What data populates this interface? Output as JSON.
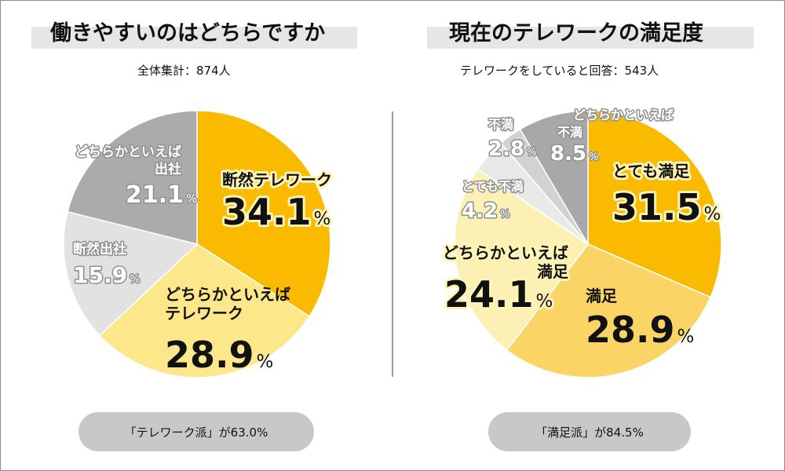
{
  "chart_data": [
    {
      "type": "pie",
      "title": "働きやすいのはどちらですか",
      "subtitle": "全体集計：874人",
      "footer": "「テレワーク派」が63.0%",
      "slices": [
        {
          "label_lines": [
            "断然テレワーク"
          ],
          "value": 34.1,
          "value_text": "34.1",
          "pct": "%",
          "color": "#F9BA00",
          "style": "dark-highlight"
        },
        {
          "label_lines": [
            "どちらかといえば",
            "テレワーク"
          ],
          "value": 28.9,
          "value_text": "28.9",
          "pct": "%",
          "color": "#FCE88A",
          "style": "dark"
        },
        {
          "label_lines": [
            "断然出社"
          ],
          "value": 15.9,
          "value_text": "15.9",
          "pct": "%",
          "color": "#E2E2E2",
          "style": "light"
        },
        {
          "label_lines": [
            "どちらかといえば",
            "出社"
          ],
          "value": 21.1,
          "value_text": "21.1",
          "pct": "%",
          "color": "#ABABAB",
          "style": "light"
        }
      ]
    },
    {
      "type": "pie",
      "title": "現在のテレワークの満足度",
      "subtitle": "テレワークをしていると回答：543人",
      "footer": "「満足派」が84.5%",
      "slices": [
        {
          "label_lines": [
            "とても満足"
          ],
          "value": 31.5,
          "value_text": "31.5",
          "pct": "%",
          "color": "#F9BA00",
          "style": "dark-highlight"
        },
        {
          "label_lines": [
            "満足"
          ],
          "value": 28.9,
          "value_text": "28.9",
          "pct": "%",
          "color": "#FAD565",
          "style": "dark"
        },
        {
          "label_lines": [
            "どちらかといえば",
            "満足"
          ],
          "value": 24.1,
          "value_text": "24.1",
          "pct": "%",
          "color": "#FDF0B4",
          "style": "dark-highlight"
        },
        {
          "label_lines": [
            "とても不満"
          ],
          "value": 4.2,
          "value_text": "4.2",
          "pct": "%",
          "color": "#E9E9E9",
          "style": "light"
        },
        {
          "label_lines": [
            "不満"
          ],
          "value": 2.8,
          "value_text": "2.8",
          "pct": "%",
          "color": "#D2D2D2",
          "style": "light"
        },
        {
          "label_lines": [
            "どちらかといえば",
            "不満"
          ],
          "value": 8.5,
          "value_text": "8.5",
          "pct": "%",
          "color": "#A8A8A8",
          "style": "light"
        }
      ]
    }
  ]
}
